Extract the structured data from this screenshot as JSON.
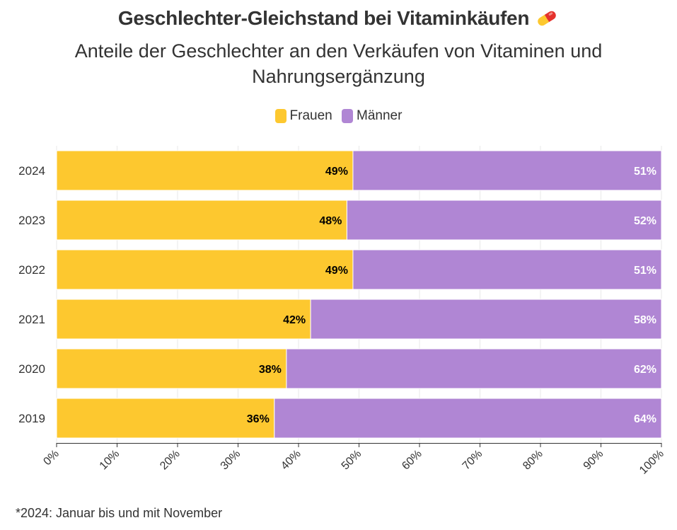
{
  "header": {
    "title": "Geschlechter-Gleichstand bei Vitaminkäufen",
    "title_icon": "pill-icon",
    "subtitle": "Anteile der Geschlechter an den Verkäufen von Vitaminen und Nahrungsergänzung"
  },
  "footnote": "*2024: Januar bis und mit November",
  "chart_data": {
    "type": "bar",
    "orientation": "horizontal",
    "stacked": true,
    "title": "Geschlechter-Gleichstand bei Vitaminkäufen",
    "subtitle": "Anteile der Geschlechter an den Verkäufen von Vitaminen und Nahrungsergänzung",
    "categories": [
      "2024",
      "2023",
      "2022",
      "2021",
      "2020",
      "2019"
    ],
    "series": [
      {
        "name": "Frauen",
        "color": "#fdc82f",
        "label_color": "#000000",
        "values": [
          49,
          48,
          49,
          42,
          38,
          36
        ],
        "labels": [
          "49%",
          "48%",
          "49%",
          "42%",
          "38%",
          "36%"
        ]
      },
      {
        "name": "Männer",
        "color": "#b086d4",
        "label_color": "#ffffff",
        "values": [
          51,
          52,
          51,
          58,
          62,
          64
        ],
        "labels": [
          "51%",
          "52%",
          "51%",
          "58%",
          "62%",
          "64%"
        ]
      }
    ],
    "xlim": [
      0,
      100
    ],
    "x_ticks": [
      "0%",
      "10%",
      "20%",
      "30%",
      "40%",
      "50%",
      "60%",
      "70%",
      "80%",
      "90%",
      "100%"
    ],
    "grid": true,
    "legend_position": "top-center"
  }
}
